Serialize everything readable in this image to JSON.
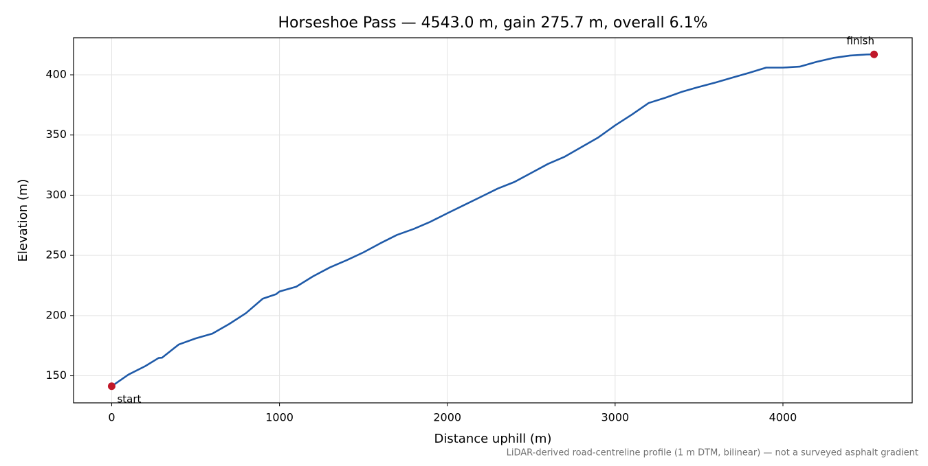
{
  "chart_data": {
    "type": "line",
    "title": "Horseshoe Pass — 4543.0 m, gain 275.7 m, overall 6.1%",
    "x_label": "Distance uphill (m)",
    "y_label": "Elevation (m)",
    "footnote": "LiDAR-derived road-centreline profile (1 m DTM, bilinear) — not a surveyed asphalt gradient",
    "x": [
      0,
      100,
      200,
      280,
      300,
      400,
      500,
      600,
      700,
      800,
      900,
      980,
      1000,
      1100,
      1200,
      1300,
      1400,
      1500,
      1600,
      1700,
      1800,
      1900,
      2000,
      2100,
      2200,
      2300,
      2400,
      2500,
      2600,
      2700,
      2800,
      2900,
      3000,
      3100,
      3200,
      3300,
      3400,
      3500,
      3600,
      3700,
      3800,
      3900,
      4000,
      4100,
      4200,
      4300,
      4400,
      4500,
      4543
    ],
    "series": [
      {
        "name": "Elevation",
        "color": "#1f5aa8",
        "values": [
          141.3,
          151,
          158,
          164.8,
          165,
          176,
          181,
          185,
          193,
          202,
          214,
          217.8,
          220,
          224,
          232.6,
          240,
          246,
          252.5,
          260,
          267,
          272,
          278,
          285,
          291.8,
          298.6,
          305.5,
          311,
          318.5,
          326,
          332,
          340,
          348,
          358,
          367,
          376.6,
          381,
          386,
          390,
          393.7,
          397.7,
          401.7,
          406,
          406,
          406.8,
          410.8,
          414,
          416,
          416.9,
          417.0
        ]
      }
    ],
    "markers": [
      {
        "label": "start",
        "x": 0,
        "y": 141.3
      },
      {
        "label": "finish",
        "x": 4543,
        "y": 417.0
      }
    ],
    "marker_color": "#c0182a",
    "xlim": [
      -227.15,
      4770.15
    ],
    "ylim": [
      127.5,
      430.8
    ],
    "xticks": [
      0,
      1000,
      2000,
      3000,
      4000
    ],
    "yticks": [
      150,
      200,
      250,
      300,
      350,
      400
    ],
    "grid": true
  }
}
